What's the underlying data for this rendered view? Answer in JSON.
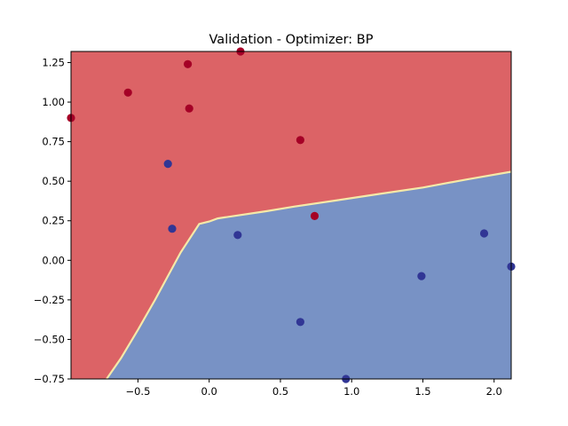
{
  "chart_data": {
    "type": "scatter",
    "title": "Validation - Optimizer: BP",
    "xlabel": "",
    "ylabel": "",
    "xlim": [
      -0.97,
      2.12
    ],
    "ylim": [
      -0.75,
      1.32
    ],
    "x_ticks": [
      "−0.5",
      "0.0",
      "0.5",
      "1.0",
      "1.5",
      "2.0"
    ],
    "x_tick_values": [
      -0.5,
      0.0,
      0.5,
      1.0,
      1.5,
      2.0
    ],
    "y_ticks": [
      "−0.75",
      "−0.50",
      "−0.25",
      "0.00",
      "0.25",
      "0.50",
      "0.75",
      "1.00",
      "1.25"
    ],
    "y_tick_values": [
      -0.75,
      -0.5,
      -0.25,
      0.0,
      0.25,
      0.5,
      0.75,
      1.0,
      1.25
    ],
    "grid": false,
    "background": "decision regions (class 0 red, class 1 blue)",
    "decision_boundary": [
      [
        -0.72,
        -0.75
      ],
      [
        -0.62,
        -0.62
      ],
      [
        -0.5,
        -0.44
      ],
      [
        -0.38,
        -0.25
      ],
      [
        -0.2,
        0.05
      ],
      [
        -0.07,
        0.23
      ],
      [
        0.0,
        0.245
      ],
      [
        0.06,
        0.265
      ],
      [
        0.4,
        0.31
      ],
      [
        0.6,
        0.34
      ],
      [
        0.9,
        0.38
      ],
      [
        1.2,
        0.42
      ],
      [
        1.5,
        0.46
      ],
      [
        1.8,
        0.51
      ],
      [
        2.12,
        0.56
      ]
    ],
    "region_colors": {
      "class_0": "#dc6366",
      "class_1": "#7892c5"
    },
    "point_colors": {
      "class_0": "#a50026",
      "class_1": "#313695"
    },
    "boundary_color": "#f5e9a8",
    "series": [
      {
        "class": 0,
        "x": [
          -0.97,
          -0.57,
          -0.15,
          -0.14,
          0.22,
          0.64,
          0.74
        ],
        "y": [
          0.9,
          1.06,
          1.24,
          0.96,
          1.32,
          0.76,
          0.28
        ]
      },
      {
        "class": 1,
        "x": [
          -0.29,
          -0.26,
          0.2,
          0.64,
          0.96,
          1.49,
          1.93,
          2.12
        ],
        "y": [
          0.61,
          0.2,
          0.16,
          -0.39,
          -0.75,
          -0.1,
          0.17,
          -0.04
        ]
      }
    ]
  }
}
